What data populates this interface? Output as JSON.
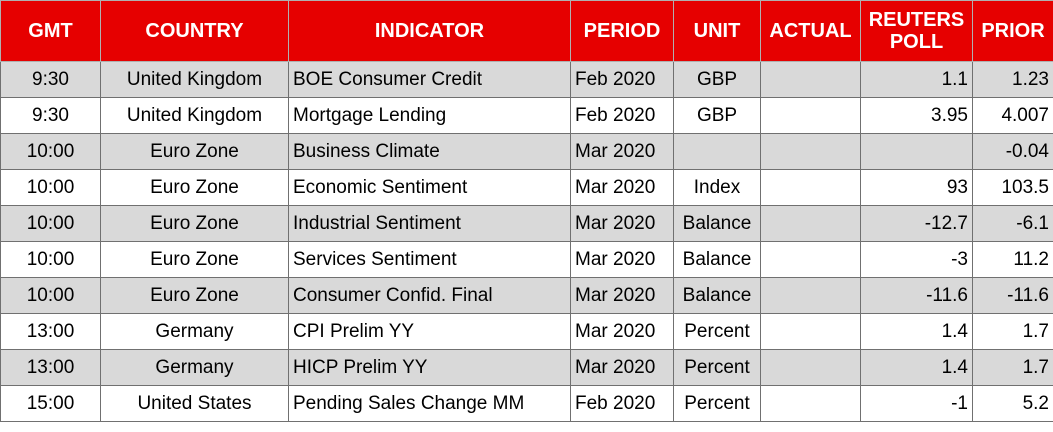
{
  "table": {
    "columns": [
      "GMT",
      "COUNTRY",
      "INDICATOR",
      "PERIOD",
      "UNIT",
      "ACTUAL",
      "REUTERS POLL",
      "PRIOR"
    ],
    "rows": [
      [
        "9:30",
        "United Kingdom",
        "BOE Consumer Credit",
        "Feb 2020",
        "GBP",
        null,
        "1.1",
        "1.23"
      ],
      [
        "9:30",
        "United Kingdom",
        "Mortgage Lending",
        "Feb 2020",
        "GBP",
        null,
        "3.95",
        "4.007"
      ],
      [
        "10:00",
        "Euro Zone",
        "Business Climate",
        "Mar 2020",
        null,
        null,
        null,
        "-0.04"
      ],
      [
        "10:00",
        "Euro Zone",
        "Economic Sentiment",
        "Mar 2020",
        "Index",
        null,
        "93",
        "103.5"
      ],
      [
        "10:00",
        "Euro Zone",
        "Industrial Sentiment",
        "Mar 2020",
        "Balance",
        null,
        "-12.7",
        "-6.1"
      ],
      [
        "10:00",
        "Euro Zone",
        "Services Sentiment",
        "Mar 2020",
        "Balance",
        null,
        "-3",
        "11.2"
      ],
      [
        "10:00",
        "Euro Zone",
        "Consumer Confid. Final",
        "Mar 2020",
        "Balance",
        null,
        "-11.6",
        "-11.6"
      ],
      [
        "13:00",
        "Germany",
        "CPI Prelim YY",
        "Mar 2020",
        "Percent",
        null,
        "1.4",
        "1.7"
      ],
      [
        "13:00",
        "Germany",
        "HICP Prelim YY",
        "Mar 2020",
        "Percent",
        null,
        "1.4",
        "1.7"
      ],
      [
        "15:00",
        "United States",
        "Pending Sales Change MM",
        "Feb 2020",
        "Percent",
        null,
        "-1",
        "5.2"
      ]
    ]
  }
}
